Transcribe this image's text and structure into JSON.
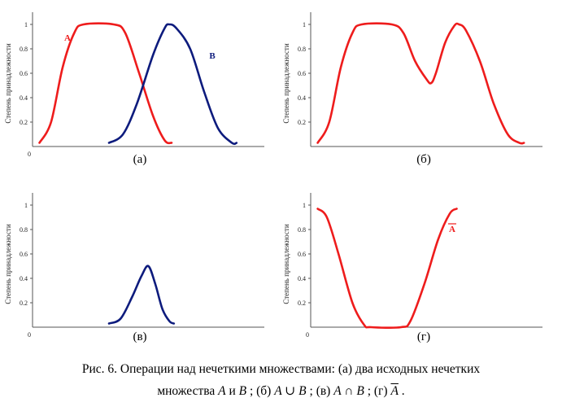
{
  "y_axis_label": "Степень принадлежности",
  "colors": {
    "red": "#ee1c1c",
    "blue": "#0d1b7d"
  },
  "chart_data": [
    {
      "type": "line",
      "id": "a",
      "label": "(а)",
      "ylabel": "Степень принадлежности",
      "origin_label": "0",
      "yticks": [
        "0.2",
        "0.4",
        "0.6",
        "0.8",
        "1"
      ],
      "ylim": [
        0,
        1.1
      ],
      "xlim": [
        0,
        10
      ],
      "series": [
        {
          "name": "A",
          "color": "#ee1c1c",
          "points": [
            [
              0.3,
              0.03
            ],
            [
              0.8,
              0.2
            ],
            [
              1.3,
              0.65
            ],
            [
              1.8,
              0.93
            ],
            [
              2.2,
              1.0
            ],
            [
              3.5,
              1.0
            ],
            [
              4.0,
              0.93
            ],
            [
              4.6,
              0.6
            ],
            [
              5.2,
              0.25
            ],
            [
              5.7,
              0.05
            ],
            [
              6.0,
              0.03
            ]
          ]
        },
        {
          "name": "B",
          "color": "#0d1b7d",
          "points": [
            [
              3.3,
              0.03
            ],
            [
              3.9,
              0.1
            ],
            [
              4.5,
              0.35
            ],
            [
              5.2,
              0.75
            ],
            [
              5.7,
              0.97
            ],
            [
              5.9,
              1.0
            ],
            [
              6.2,
              0.97
            ],
            [
              6.8,
              0.8
            ],
            [
              7.4,
              0.45
            ],
            [
              8.0,
              0.15
            ],
            [
              8.6,
              0.03
            ],
            [
              8.8,
              0.03
            ]
          ]
        }
      ]
    },
    {
      "type": "line",
      "id": "b",
      "label": "(б)",
      "ylabel": "Степень принадлежности",
      "origin_label": "",
      "yticks": [
        "0.2",
        "0.4",
        "0.6",
        "0.8",
        "1"
      ],
      "ylim": [
        0,
        1.1
      ],
      "xlim": [
        0,
        10
      ],
      "series": [
        {
          "name": "",
          "color": "#ee1c1c",
          "points": [
            [
              0.3,
              0.03
            ],
            [
              0.8,
              0.2
            ],
            [
              1.3,
              0.65
            ],
            [
              1.8,
              0.93
            ],
            [
              2.2,
              1.0
            ],
            [
              3.5,
              1.0
            ],
            [
              4.0,
              0.93
            ],
            [
              4.5,
              0.7
            ],
            [
              5.0,
              0.55
            ],
            [
              5.2,
              0.52
            ],
            [
              5.4,
              0.6
            ],
            [
              5.8,
              0.85
            ],
            [
              6.2,
              0.99
            ],
            [
              6.4,
              1.0
            ],
            [
              6.7,
              0.95
            ],
            [
              7.3,
              0.7
            ],
            [
              7.9,
              0.35
            ],
            [
              8.5,
              0.1
            ],
            [
              9.0,
              0.03
            ],
            [
              9.2,
              0.03
            ]
          ]
        }
      ]
    },
    {
      "type": "line",
      "id": "c",
      "label": "(в)",
      "ylabel": "Степень принадлежности",
      "origin_label": "0",
      "yticks": [
        "0.2",
        "0.4",
        "0.6",
        "0.8",
        "1"
      ],
      "ylim": [
        0,
        1.1
      ],
      "xlim": [
        0,
        10
      ],
      "series": [
        {
          "name": "",
          "color": "#0d1b7d",
          "points": [
            [
              3.3,
              0.03
            ],
            [
              3.8,
              0.07
            ],
            [
              4.3,
              0.25
            ],
            [
              4.7,
              0.42
            ],
            [
              5.0,
              0.5
            ],
            [
              5.3,
              0.35
            ],
            [
              5.6,
              0.15
            ],
            [
              5.9,
              0.05
            ],
            [
              6.1,
              0.03
            ]
          ]
        }
      ]
    },
    {
      "type": "line",
      "id": "d",
      "label": "(г)",
      "ylabel": "Степень принадлежности",
      "origin_label": "0",
      "yticks": [
        "0.2",
        "0.4",
        "0.6",
        "0.8",
        "1"
      ],
      "ylim": [
        0,
        1.1
      ],
      "xlim": [
        0,
        10
      ],
      "series": [
        {
          "name": "A",
          "overline": true,
          "color": "#ee1c1c",
          "points": [
            [
              0.3,
              0.97
            ],
            [
              0.7,
              0.9
            ],
            [
              1.2,
              0.6
            ],
            [
              1.8,
              0.2
            ],
            [
              2.3,
              0.02
            ],
            [
              2.6,
              0.0
            ],
            [
              3.9,
              0.0
            ],
            [
              4.3,
              0.05
            ],
            [
              4.9,
              0.35
            ],
            [
              5.5,
              0.72
            ],
            [
              6.0,
              0.93
            ],
            [
              6.3,
              0.97
            ]
          ]
        }
      ]
    }
  ],
  "caption": {
    "line1": "Рис. 6. Операции над нечеткими множествами: (а) два исходных нечетких",
    "line2_parts": {
      "p1": "множества ",
      "A": "A",
      "and": " и ",
      "B": "B",
      "b_label": "; (б) ",
      "union": "A ∪ B",
      "v_label": "; (в) ",
      "inter": "A ∩ B",
      "g_label": "; (г) ",
      "notA": "A",
      "end": " ."
    }
  }
}
